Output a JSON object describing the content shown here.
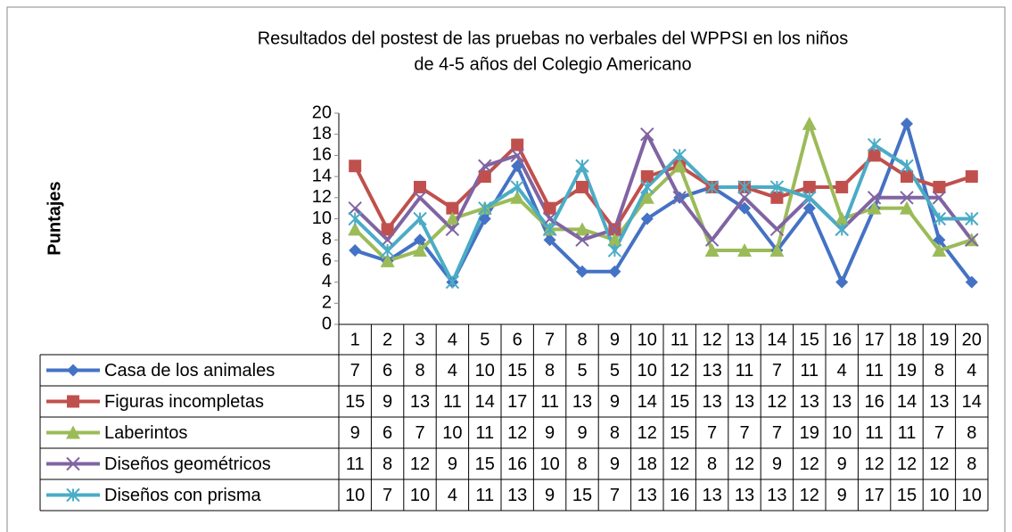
{
  "chart_data": {
    "type": "line",
    "title": "Resultados del postest de las pruebas no verbales del WPPSI en los niños",
    "subtitle": "de  4-5 años del Colegio Americano",
    "y_label": "Puntajes",
    "categories": [
      "1",
      "2",
      "3",
      "4",
      "5",
      "6",
      "7",
      "8",
      "9",
      "10",
      "11",
      "12",
      "13",
      "14",
      "15",
      "16",
      "17",
      "18",
      "19",
      "20"
    ],
    "ylim": [
      0,
      20
    ],
    "yticks": [
      0,
      2,
      4,
      6,
      8,
      10,
      12,
      14,
      16,
      18,
      20
    ],
    "grid": false,
    "series": [
      {
        "name": "Casa de los animales",
        "color": "#4472c4",
        "marker": "diamond",
        "values": [
          7,
          6,
          8,
          4,
          10,
          15,
          8,
          5,
          5,
          10,
          12,
          13,
          11,
          7,
          11,
          4,
          11,
          19,
          8,
          4
        ]
      },
      {
        "name": "Figuras incompletas",
        "color": "#c0504d",
        "marker": "square",
        "values": [
          15,
          9,
          13,
          11,
          14,
          17,
          11,
          13,
          9,
          14,
          15,
          13,
          13,
          12,
          13,
          13,
          16,
          14,
          13,
          14
        ]
      },
      {
        "name": "Laberintos",
        "color": "#9bbb59",
        "marker": "triangle",
        "values": [
          9,
          6,
          7,
          10,
          11,
          12,
          9,
          9,
          8,
          12,
          15,
          7,
          7,
          7,
          19,
          10,
          11,
          11,
          7,
          8
        ]
      },
      {
        "name": "Diseños geométricos",
        "color": "#8064a2",
        "marker": "x",
        "values": [
          11,
          8,
          12,
          9,
          15,
          16,
          10,
          8,
          9,
          18,
          12,
          8,
          12,
          9,
          12,
          9,
          12,
          12,
          12,
          8
        ]
      },
      {
        "name": "Diseños con prisma",
        "color": "#4bacc6",
        "marker": "star",
        "values": [
          10,
          7,
          10,
          4,
          11,
          13,
          9,
          15,
          7,
          13,
          16,
          13,
          13,
          13,
          12,
          9,
          17,
          15,
          10,
          10
        ]
      }
    ]
  }
}
